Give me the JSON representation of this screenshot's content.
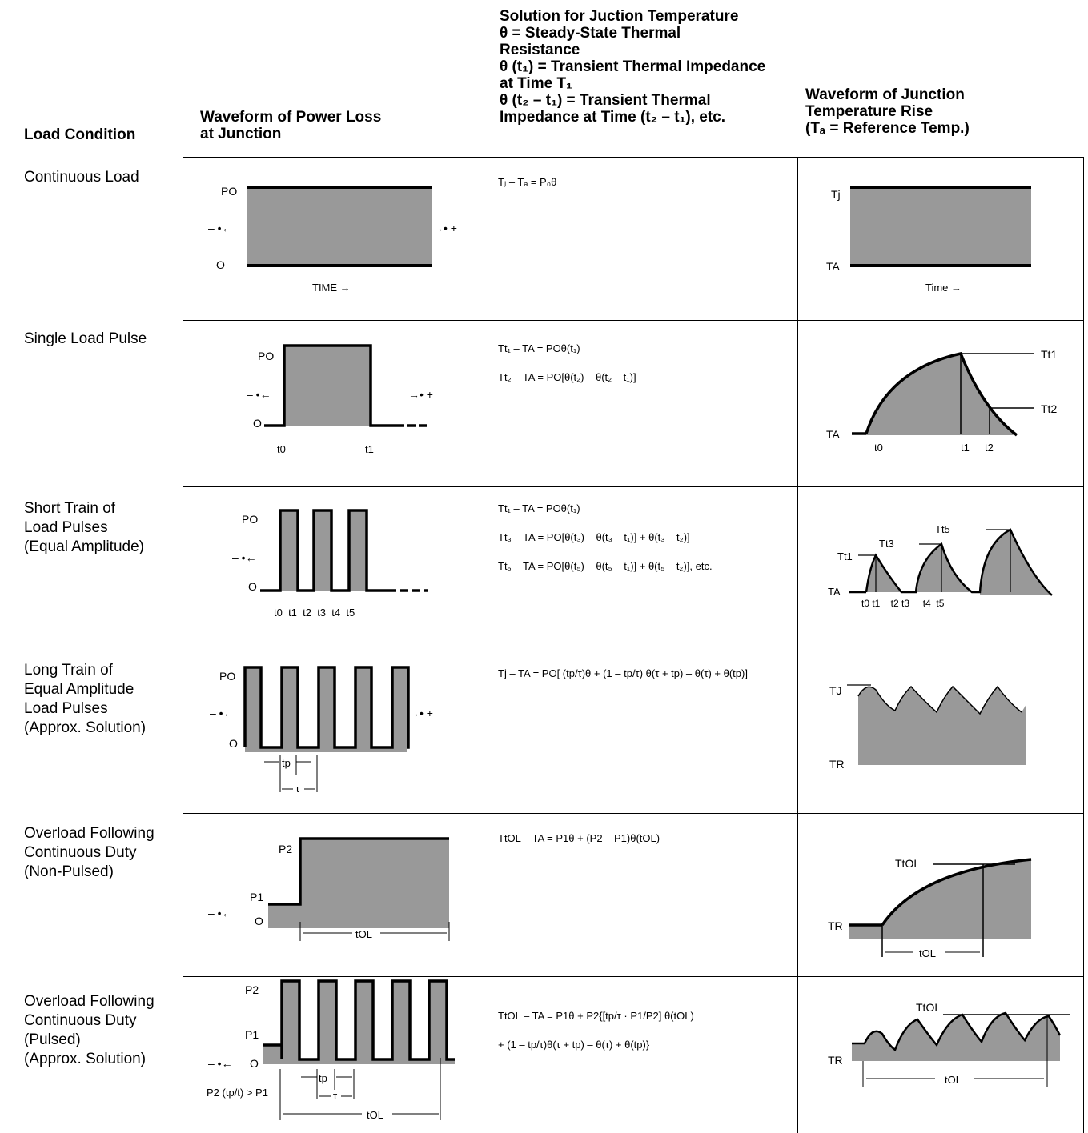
{
  "headers": {
    "col1": "Load Condition",
    "col2": [
      "Waveform of Power Loss",
      "at Junction"
    ],
    "col3": [
      "Solution for Juction Temperature",
      "θ = Steady-State Thermal",
      "Resistance",
      "θ (t₁) = Transient Thermal Impedance",
      "at Time T₁",
      "θ (t₂ – t₁) = Transient Thermal",
      "Impedance at Time (t₂ – t₁), etc."
    ],
    "col4": [
      "Waveform of Junction",
      "Temperature Rise",
      "(Tₐ = Reference Temp.)"
    ]
  },
  "rows": [
    {
      "condition": [
        "Continuous Load"
      ],
      "equations": [
        "Tⱼ – Tₐ = P₀θ"
      ],
      "power_labels": {
        "top": "PO",
        "bottom": "O",
        "left": "– •←",
        "right": "→• +",
        "axis": "TIME →"
      },
      "temp_labels": {
        "top": "Tj",
        "bottom": "TA",
        "axis": "Time →"
      }
    },
    {
      "condition": [
        "Single Load Pulse"
      ],
      "equations": [
        "Tt₁ – TA = POθ(t₁)",
        "Tt₂ – TA = PO[θ(t₂) – θ(t₂ – t₁)]"
      ],
      "power_labels": {
        "top": "PO",
        "bottom": "O",
        "left": "– •←",
        "right": "→• +",
        "t0": "t0",
        "t1": "t1"
      },
      "temp_labels": {
        "base": "TA",
        "t0": "t0",
        "t1": "t1",
        "t2": "t2",
        "peak1": "Tt1",
        "peak2": "Tt2"
      }
    },
    {
      "condition": [
        "Short Train of",
        "Load Pulses",
        "(Equal Amplitude)"
      ],
      "equations": [
        "Tt₁ – TA = POθ(t₁)",
        "Tt₃ – TA = PO[θ(t₃) – θ(t₃ – t₁)] + θ(t₃ – t₂)]",
        "Tt₅ – TA = PO[θ(t₅) – θ(t₅ – t₁)] + θ(t₅ – t₂)], etc."
      ],
      "power_labels": {
        "top": "PO",
        "bottom": "O",
        "left": "– •←",
        "ticks": "t0  t1  t2  t3  t4  t5"
      },
      "temp_labels": {
        "base": "TA",
        "p1": "Tt1",
        "p3": "Tt3",
        "p5": "Tt5",
        "ticks": "t0 t1    t2 t3     t4  t5"
      }
    },
    {
      "condition": [
        "Long Train of",
        "Equal Amplitude",
        "Load Pulses",
        "(Approx. Solution)"
      ],
      "equations": [
        "Tj – TA = PO[ (tp/τ)θ + (1 – tp/τ) θ(τ + tp) – θ(τ) + θ(tp)]"
      ],
      "power_labels": {
        "top": "PO",
        "bottom": "O",
        "left": "– •←",
        "right": "→• +",
        "tp": "tp",
        "tau": "τ"
      },
      "temp_labels": {
        "top": "TJ",
        "bottom": "TR"
      }
    },
    {
      "condition": [
        "Overload Following",
        "Continuous Duty",
        "(Non-Pulsed)"
      ],
      "equations": [
        "TtOL – TA = P1θ + (P2 – P1)θ(tOL)"
      ],
      "power_labels": {
        "p2": "P2",
        "p1": "P1",
        "bottom": "O",
        "left": "– •←",
        "tol": "tOL"
      },
      "temp_labels": {
        "base": "TR",
        "peak": "TtOL",
        "tol": "tOL"
      }
    },
    {
      "condition": [
        "Overload Following",
        "Continuous Duty",
        "(Pulsed)",
        "(Approx. Solution)"
      ],
      "equations": [
        "TtOL – TA = P1θ + P2{[tp/τ · P1/P2] θ(tOL)",
        "+ (1 – tp/τ)θ(τ + tp) – θ(τ) + θ(tp)}"
      ],
      "power_labels": {
        "p2": "P2",
        "p1": "P1",
        "bottom": "O",
        "left": "– •←",
        "tp": "tp",
        "tau": "τ",
        "tol": "tOL",
        "cond": "P2 (tp/t) > P1"
      },
      "temp_labels": {
        "base": "TR",
        "peak": "TtOL",
        "tol": "tOL"
      }
    }
  ]
}
